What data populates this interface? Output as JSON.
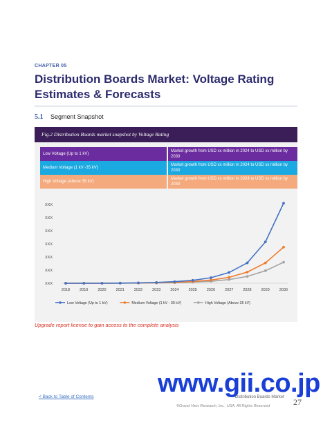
{
  "chapter": "CHAPTER 05",
  "title_line1": "Distribution Boards Market: Voltage Rating",
  "title_line2": "Estimates & Forecasts",
  "section": {
    "number": "5.1",
    "title": "Segment Snapshot"
  },
  "figure_caption": "Fig.2 Distribution Boards market snapshot by Voltage Rating",
  "segments": [
    {
      "label": "Low Voltage (Up to 1 kV)",
      "text": "Market growth from USD xx million in 2024 to USD xx million by 2030",
      "color": "#6a2c9e"
    },
    {
      "label": "Medium Voltage (1 kV -35 kV)",
      "text": "Market growth from USD xx million in 2024 to USD xx million by 2030",
      "color": "#1aa9e0"
    },
    {
      "label": "High Voltage (Above 35 kV)",
      "text": "Market growth from USD xx million in 2024 to USD xx million by 2030",
      "color": "#f4aa7c"
    }
  ],
  "chart_data": {
    "type": "line",
    "x": [
      "2018",
      "2019",
      "2020",
      "2021",
      "2022",
      "2023",
      "2024",
      "2025",
      "2026",
      "2027",
      "2028",
      "2029",
      "2030"
    ],
    "y_tick_labels": [
      "XXX",
      "XXX",
      "XXX",
      "XXX",
      "XXX",
      "XXX",
      "XXX"
    ],
    "ylim": [
      0,
      6
    ],
    "grid": false,
    "legend_position": "bottom",
    "series": [
      {
        "name": "Low Voltage (Up to 1 kV)",
        "color": "#4472c4",
        "values": [
          0,
          0,
          0,
          0.01,
          0.03,
          0.06,
          0.12,
          0.22,
          0.42,
          0.82,
          1.55,
          3.15,
          6.1
        ]
      },
      {
        "name": "Medium Voltage (1 kV - 35 kV)",
        "color": "#ed7d31",
        "values": [
          0,
          0,
          0,
          0.01,
          0.02,
          0.04,
          0.07,
          0.13,
          0.24,
          0.45,
          0.85,
          1.55,
          2.75
        ]
      },
      {
        "name": "High Voltage (Above 35 kV)",
        "color": "#a5a5a5",
        "values": [
          0,
          0,
          0,
          0.01,
          0.01,
          0.02,
          0.04,
          0.08,
          0.15,
          0.28,
          0.52,
          0.95,
          1.6
        ]
      }
    ]
  },
  "upgrade_text": "Upgrade report license to gain access to the complete analysis",
  "back_link": "< Back to Table of Contents",
  "footer_title": "Distribution Boards Market",
  "page_number": "27",
  "copyright": "©Grand View Research, Inc., USA. All Rights Reserved",
  "watermark": "www.gii.co.jp"
}
